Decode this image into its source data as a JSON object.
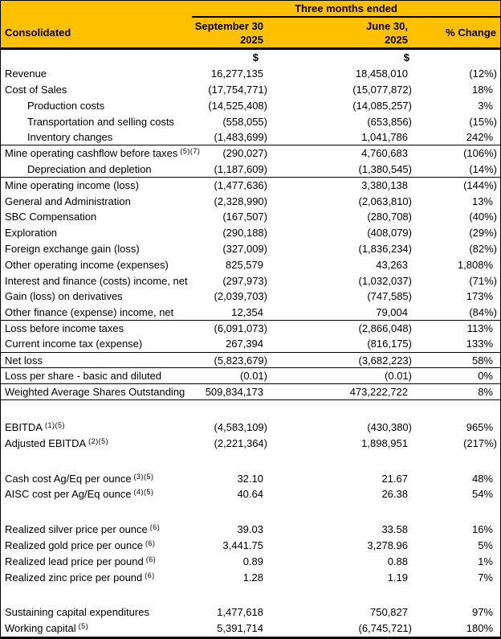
{
  "colors": {
    "accent": "#FFC000",
    "border": "#000000"
  },
  "header": {
    "consolidated_label": "Consolidated",
    "period_label": "Three months ended",
    "col_september": {
      "line1": "September 30",
      "line2": "2025"
    },
    "col_june": {
      "line1": "June 30,",
      "line2": "2025"
    },
    "change_label": "% Change",
    "currency_symbol": "$"
  },
  "rows": [
    {
      "currency": true,
      "label": "",
      "sep": "$",
      "jun": "$",
      "chg": ""
    },
    {
      "label": "Revenue",
      "sep": "16,277,135",
      "jun": "18,458,010",
      "chg": "(12%)"
    },
    {
      "label": "Cost of Sales",
      "sep": "(17,754,771)",
      "jun": "(15,077,872)",
      "chg": "18%"
    },
    {
      "label": "Production costs",
      "indent": true,
      "sep": "(14,525,408)",
      "jun": "(14,085,257)",
      "chg": "3%"
    },
    {
      "label": "Transportation and selling costs",
      "indent": true,
      "sep": "(558,055)",
      "jun": "(653,856)",
      "chg": "(15%)"
    },
    {
      "label": "Inventory changes",
      "indent": true,
      "sep": "(1,483,699)",
      "jun": "1,041,786",
      "chg": "242%"
    },
    {
      "label": "Mine operating cashflow before taxes",
      "sup": "(5)(7)",
      "border_top": true,
      "sep": "(290,027)",
      "jun": "4,760,683",
      "chg": "(106%)"
    },
    {
      "label": "Depreciation and depletion",
      "indent": true,
      "sep": "(1,187,609)",
      "jun": "(1,380,545)",
      "chg": "(14%)"
    },
    {
      "label": "Mine operating income (loss)",
      "border_top": true,
      "sep": "(1,477,636)",
      "jun": "3,380,138",
      "chg": "(144%)"
    },
    {
      "label": "General and Administration",
      "sep": "(2,328,990)",
      "jun": "(2,063,810)",
      "chg": "13%"
    },
    {
      "label": "SBC Compensation",
      "sep": "(167,507)",
      "jun": "(280,708)",
      "chg": "(40%)"
    },
    {
      "label": "Exploration",
      "sep": "(290,188)",
      "jun": "(408,079)",
      "chg": "(29%)"
    },
    {
      "label": "Foreign exchange gain (loss)",
      "sep": "(327,009)",
      "jun": "(1,836,234)",
      "chg": "(82%)"
    },
    {
      "label": "Other operating income (expenses)",
      "sep": "825,579",
      "jun": "43,263",
      "chg": "1,808%"
    },
    {
      "label": "Interest and finance (costs) income, net",
      "sep": "(297,973)",
      "jun": "(1,032,037)",
      "chg": "(71%)"
    },
    {
      "label": "Gain (loss) on derivatives",
      "sep": "(2,039,703)",
      "jun": "(747,585)",
      "chg": "173%"
    },
    {
      "label": "Other finance (expense) income, net",
      "sep": "12,354",
      "jun": "79,004",
      "chg": "(84%)"
    },
    {
      "label": "Loss before income taxes",
      "border_top": true,
      "sep": "(6,091,073)",
      "jun": "(2,866,048)",
      "chg": "113%"
    },
    {
      "label": "Current income tax (expense)",
      "sep": "267,394",
      "jun": "(816,175)",
      "chg": "133%"
    },
    {
      "label": "Net loss",
      "border_top": true,
      "sep": "(5,823,679)",
      "jun": "(3,682,223)",
      "chg": "58%"
    },
    {
      "label": "Loss per share - basic and diluted",
      "border_top": true,
      "sep": "(0.01)",
      "jun": "(0.01)",
      "chg": "0%"
    },
    {
      "label": "Weighted Average Shares Outstanding",
      "border_top": true,
      "border_bottom": true,
      "sep": "509,834,173",
      "jun": "473,222,722",
      "chg": "8%"
    },
    {
      "blank": true
    },
    {
      "label": "EBITDA",
      "sup": "(1)(5)",
      "sep": "(4,583,109)",
      "jun": "(430,380)",
      "chg": "965%"
    },
    {
      "label": "Adjusted EBITDA",
      "sup": "(2)(5)",
      "sep": "(2,221,364)",
      "jun": "1,898,951",
      "chg": "(217%)"
    },
    {
      "blank": true
    },
    {
      "label": "Cash cost Ag/Eq per ounce",
      "sup": "(3)(5)",
      "sep": "32.10",
      "jun": "21.67",
      "chg": "48%"
    },
    {
      "label": "AISC cost per Ag/Eq ounce",
      "sup": "(4)(5)",
      "sep": "40.64",
      "jun": "26.38",
      "chg": "54%"
    },
    {
      "blank": true
    },
    {
      "label": "Realized silver price per ounce",
      "sup": "(6)",
      "sep": "39.03",
      "jun": "33.58",
      "chg": "16%"
    },
    {
      "label": "Realized gold price per ounce",
      "sup": "(6)",
      "sep": "3,441.75",
      "jun": "3,278.96",
      "chg": "5%"
    },
    {
      "label": "Realized lead price per pound",
      "sup": "(6)",
      "sep": "0.89",
      "jun": "0.88",
      "chg": "1%"
    },
    {
      "label": "Realized zinc price per pound",
      "sup": "(6)",
      "sep": "1.28",
      "jun": "1.19",
      "chg": "7%"
    },
    {
      "blank": true
    },
    {
      "label": "Sustaining capital expenditures",
      "sep": "1,477,618",
      "jun": "750,827",
      "chg": "97%"
    },
    {
      "label": "Working capital",
      "sup": "(5)",
      "sep": "5,391,714",
      "jun": "(6,745,721)",
      "chg": "180%"
    }
  ]
}
